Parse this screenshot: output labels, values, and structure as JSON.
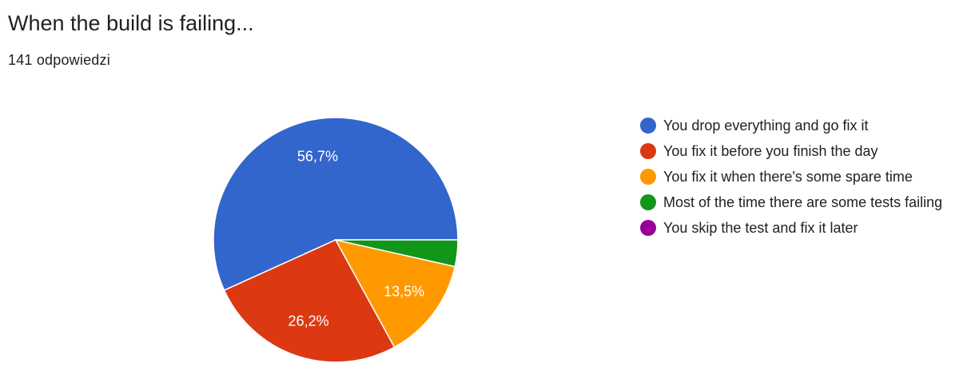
{
  "header": {
    "title": "When the build is failing...",
    "responses": "141 odpowiedzi"
  },
  "chart_data": {
    "type": "pie",
    "categories": [
      "You drop everything and go fix it",
      "You fix it before you finish the day",
      "You fix it when there's some spare time",
      "Most of the time there are some tests failing",
      "You skip the test and fix it later"
    ],
    "values": [
      56.7,
      26.2,
      13.5,
      3.5,
      0
    ],
    "labels": [
      "56,7%",
      "26,2%",
      "13,5%",
      "",
      ""
    ],
    "colors": [
      "#3366cc",
      "#dc3912",
      "#ff9900",
      "#109618",
      "#990099"
    ],
    "legend": "right"
  }
}
